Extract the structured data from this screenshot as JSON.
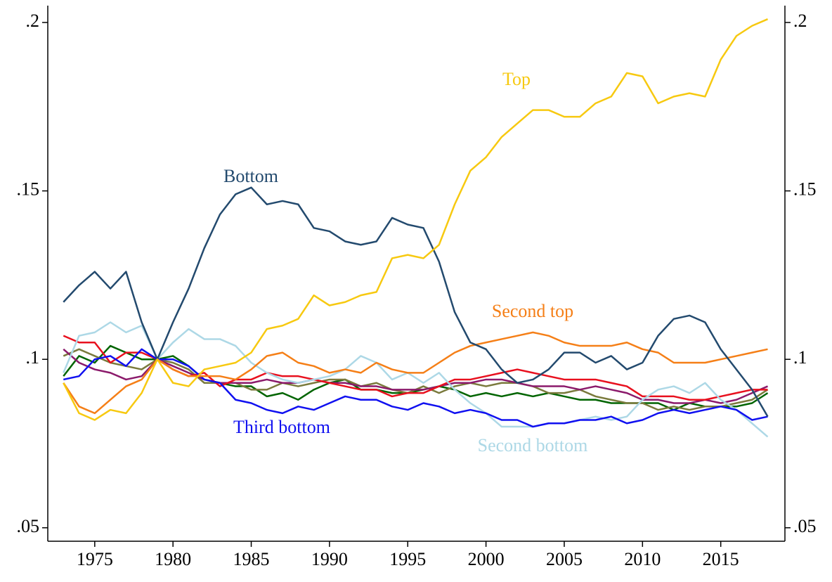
{
  "chart_data": {
    "type": "line",
    "x": [
      1973,
      1974,
      1975,
      1976,
      1977,
      1978,
      1979,
      1980,
      1981,
      1982,
      1983,
      1984,
      1985,
      1986,
      1987,
      1988,
      1989,
      1990,
      1991,
      1992,
      1993,
      1994,
      1995,
      1996,
      1997,
      1998,
      1999,
      2000,
      2001,
      2002,
      2003,
      2004,
      2005,
      2006,
      2007,
      2008,
      2009,
      2010,
      2011,
      2012,
      2013,
      2014,
      2015,
      2016,
      2017,
      2018
    ],
    "xlim": [
      1972,
      2019.1
    ],
    "xticks": [
      1975,
      1980,
      1985,
      1990,
      1995,
      2000,
      2005,
      2010,
      2015
    ],
    "ylim": [
      0.046,
      0.205
    ],
    "yticks": [
      {
        "value": 0.05,
        "label": ".05"
      },
      {
        "value": 0.1,
        "label": ".1"
      },
      {
        "value": 0.15,
        "label": ".15"
      },
      {
        "value": 0.2,
        "label": ".2"
      }
    ],
    "y2lim": [
      0.046,
      0.205
    ],
    "y2ticks": [
      {
        "value": 0.05,
        "label": ".05"
      },
      {
        "value": 0.1,
        "label": ".1"
      },
      {
        "value": 0.15,
        "label": ".15"
      },
      {
        "value": 0.2,
        "label": ".2"
      }
    ],
    "series": [
      {
        "color": "#006400",
        "values": [
          0.095,
          0.101,
          0.099,
          0.104,
          0.102,
          0.1,
          0.1,
          0.101,
          0.098,
          0.094,
          0.093,
          0.092,
          0.092,
          0.089,
          0.09,
          0.088,
          0.091,
          0.093,
          0.094,
          0.091,
          0.091,
          0.09,
          0.09,
          0.091,
          0.092,
          0.091,
          0.089,
          0.09,
          0.089,
          0.09,
          0.089,
          0.09,
          0.089,
          0.088,
          0.088,
          0.087,
          0.087,
          0.087,
          0.087,
          0.085,
          0.087,
          0.086,
          0.086,
          0.086,
          0.087,
          0.09
        ]
      },
      {
        "color": "#7a7a3c",
        "values": [
          0.101,
          0.103,
          0.101,
          0.099,
          0.098,
          0.097,
          0.1,
          0.099,
          0.097,
          0.093,
          0.093,
          0.093,
          0.091,
          0.091,
          0.093,
          0.092,
          0.093,
          0.094,
          0.094,
          0.092,
          0.093,
          0.091,
          0.09,
          0.092,
          0.09,
          0.092,
          0.093,
          0.092,
          0.093,
          0.093,
          0.092,
          0.09,
          0.09,
          0.091,
          0.089,
          0.088,
          0.087,
          0.087,
          0.085,
          0.086,
          0.085,
          0.086,
          0.086,
          0.087,
          0.088,
          0.091
        ]
      },
      {
        "color": "#8b1a6b",
        "values": [
          0.103,
          0.099,
          0.097,
          0.096,
          0.094,
          0.095,
          0.1,
          0.098,
          0.096,
          0.094,
          0.093,
          0.093,
          0.093,
          0.094,
          0.093,
          0.093,
          0.094,
          0.093,
          0.093,
          0.092,
          0.092,
          0.091,
          0.091,
          0.091,
          0.092,
          0.093,
          0.093,
          0.094,
          0.094,
          0.093,
          0.092,
          0.092,
          0.092,
          0.091,
          0.092,
          0.091,
          0.09,
          0.088,
          0.088,
          0.087,
          0.087,
          0.088,
          0.087,
          0.088,
          0.09,
          0.092
        ]
      },
      {
        "color": "#e8101e",
        "values": [
          0.107,
          0.105,
          0.105,
          0.099,
          0.102,
          0.102,
          0.1,
          0.097,
          0.095,
          0.096,
          0.092,
          0.094,
          0.094,
          0.096,
          0.095,
          0.095,
          0.094,
          0.093,
          0.092,
          0.091,
          0.091,
          0.089,
          0.09,
          0.09,
          0.092,
          0.094,
          0.094,
          0.095,
          0.096,
          0.097,
          0.096,
          0.095,
          0.094,
          0.094,
          0.094,
          0.093,
          0.092,
          0.089,
          0.089,
          0.089,
          0.088,
          0.088,
          0.089,
          0.09,
          0.091,
          0.091
        ]
      },
      {
        "name": "Second bottom",
        "color": "#add8e6",
        "values": [
          0.096,
          0.107,
          0.108,
          0.111,
          0.108,
          0.11,
          0.1,
          0.105,
          0.109,
          0.106,
          0.106,
          0.104,
          0.099,
          0.096,
          0.094,
          0.093,
          0.094,
          0.095,
          0.097,
          0.101,
          0.099,
          0.094,
          0.096,
          0.093,
          0.096,
          0.091,
          0.087,
          0.084,
          0.08,
          0.08,
          0.08,
          0.081,
          0.081,
          0.082,
          0.083,
          0.082,
          0.083,
          0.088,
          0.091,
          0.092,
          0.09,
          0.093,
          0.088,
          0.085,
          0.081,
          0.077
        ]
      },
      {
        "name": "Third bottom",
        "color": "#1010f0",
        "values": [
          0.094,
          0.095,
          0.1,
          0.101,
          0.098,
          0.103,
          0.1,
          0.1,
          0.098,
          0.094,
          0.093,
          0.088,
          0.087,
          0.085,
          0.084,
          0.086,
          0.085,
          0.087,
          0.089,
          0.088,
          0.088,
          0.086,
          0.085,
          0.087,
          0.086,
          0.084,
          0.085,
          0.084,
          0.082,
          0.082,
          0.08,
          0.081,
          0.081,
          0.082,
          0.082,
          0.083,
          0.081,
          0.082,
          0.084,
          0.085,
          0.084,
          0.085,
          0.086,
          0.085,
          0.082,
          0.083
        ]
      },
      {
        "name": "Second top",
        "color": "#f57f17",
        "values": [
          0.093,
          0.086,
          0.084,
          0.088,
          0.092,
          0.094,
          0.1,
          0.097,
          0.095,
          0.095,
          0.095,
          0.094,
          0.097,
          0.101,
          0.102,
          0.099,
          0.098,
          0.096,
          0.097,
          0.096,
          0.099,
          0.097,
          0.096,
          0.096,
          0.099,
          0.102,
          0.104,
          0.105,
          0.106,
          0.107,
          0.108,
          0.107,
          0.105,
          0.104,
          0.104,
          0.104,
          0.105,
          0.103,
          0.102,
          0.099,
          0.099,
          0.099,
          0.1,
          0.101,
          0.102,
          0.103
        ]
      },
      {
        "name": "Bottom",
        "color": "#234a6e",
        "values": [
          0.117,
          0.122,
          0.126,
          0.121,
          0.126,
          0.111,
          0.1,
          0.111,
          0.121,
          0.133,
          0.143,
          0.149,
          0.151,
          0.146,
          0.147,
          0.146,
          0.139,
          0.138,
          0.135,
          0.134,
          0.135,
          0.142,
          0.14,
          0.139,
          0.129,
          0.114,
          0.105,
          0.103,
          0.097,
          0.093,
          0.094,
          0.097,
          0.102,
          0.102,
          0.099,
          0.101,
          0.097,
          0.099,
          0.107,
          0.112,
          0.113,
          0.111,
          0.103,
          0.097,
          0.091,
          0.083
        ]
      },
      {
        "name": "Top",
        "color": "#f7c910",
        "values": [
          0.093,
          0.084,
          0.082,
          0.085,
          0.084,
          0.09,
          0.1,
          0.093,
          0.092,
          0.097,
          0.098,
          0.099,
          0.102,
          0.109,
          0.11,
          0.112,
          0.119,
          0.116,
          0.117,
          0.119,
          0.12,
          0.13,
          0.131,
          0.13,
          0.134,
          0.146,
          0.156,
          0.16,
          0.166,
          0.17,
          0.174,
          0.174,
          0.172,
          0.172,
          0.176,
          0.178,
          0.185,
          0.184,
          0.176,
          0.178,
          0.179,
          0.178,
          0.189,
          0.196,
          0.199,
          0.201
        ]
      }
    ]
  }
}
